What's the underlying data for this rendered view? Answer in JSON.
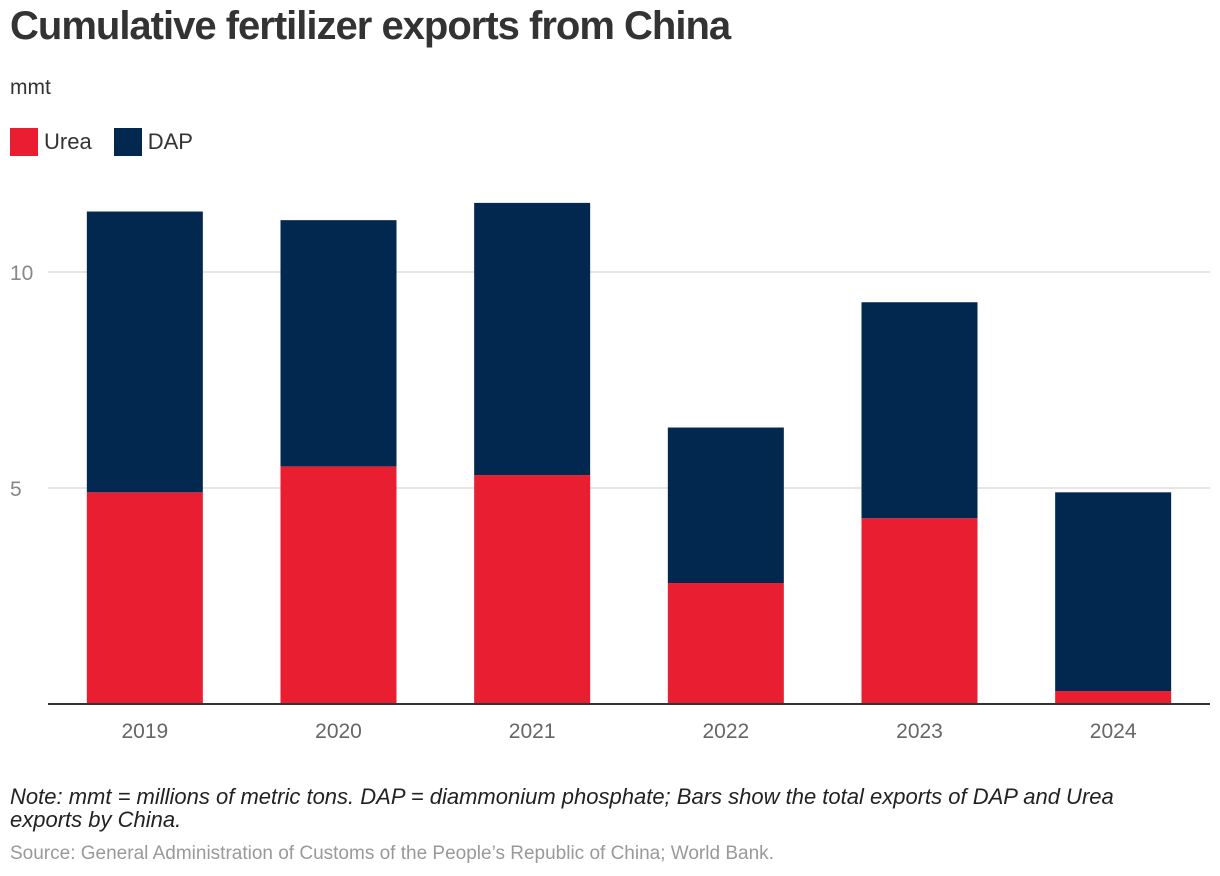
{
  "header": {
    "title": "Cumulative fertilizer exports from China",
    "unit": "mmt"
  },
  "legend": {
    "items": [
      {
        "label": "Urea",
        "color": "#e91e31"
      },
      {
        "label": "DAP",
        "color": "#03284f"
      }
    ]
  },
  "chart_data": {
    "type": "bar",
    "stacked": true,
    "title": "Cumulative fertilizer exports from China",
    "ylabel": "mmt",
    "xlabel": "",
    "categories": [
      "2019",
      "2020",
      "2021",
      "2022",
      "2023",
      "2024"
    ],
    "series": [
      {
        "name": "Urea",
        "color": "#e91e31",
        "values": [
          4.9,
          5.5,
          5.3,
          2.8,
          4.3,
          0.3
        ]
      },
      {
        "name": "DAP",
        "color": "#03284f",
        "values": [
          6.5,
          5.7,
          6.3,
          3.6,
          5.0,
          4.6
        ]
      }
    ],
    "ylim": [
      0,
      13
    ],
    "yticks": [
      5,
      10
    ],
    "ytick_labels": [
      "5",
      "10"
    ],
    "grid": true,
    "legend_position": "top-left"
  },
  "footer": {
    "note": "Note: mmt = millions of metric tons. DAP = diammonium phosphate; Bars show the total exports of DAP and Urea exports by China.",
    "source": "Source: General Administration of Customs of the People’s Republic of China; World Bank."
  }
}
